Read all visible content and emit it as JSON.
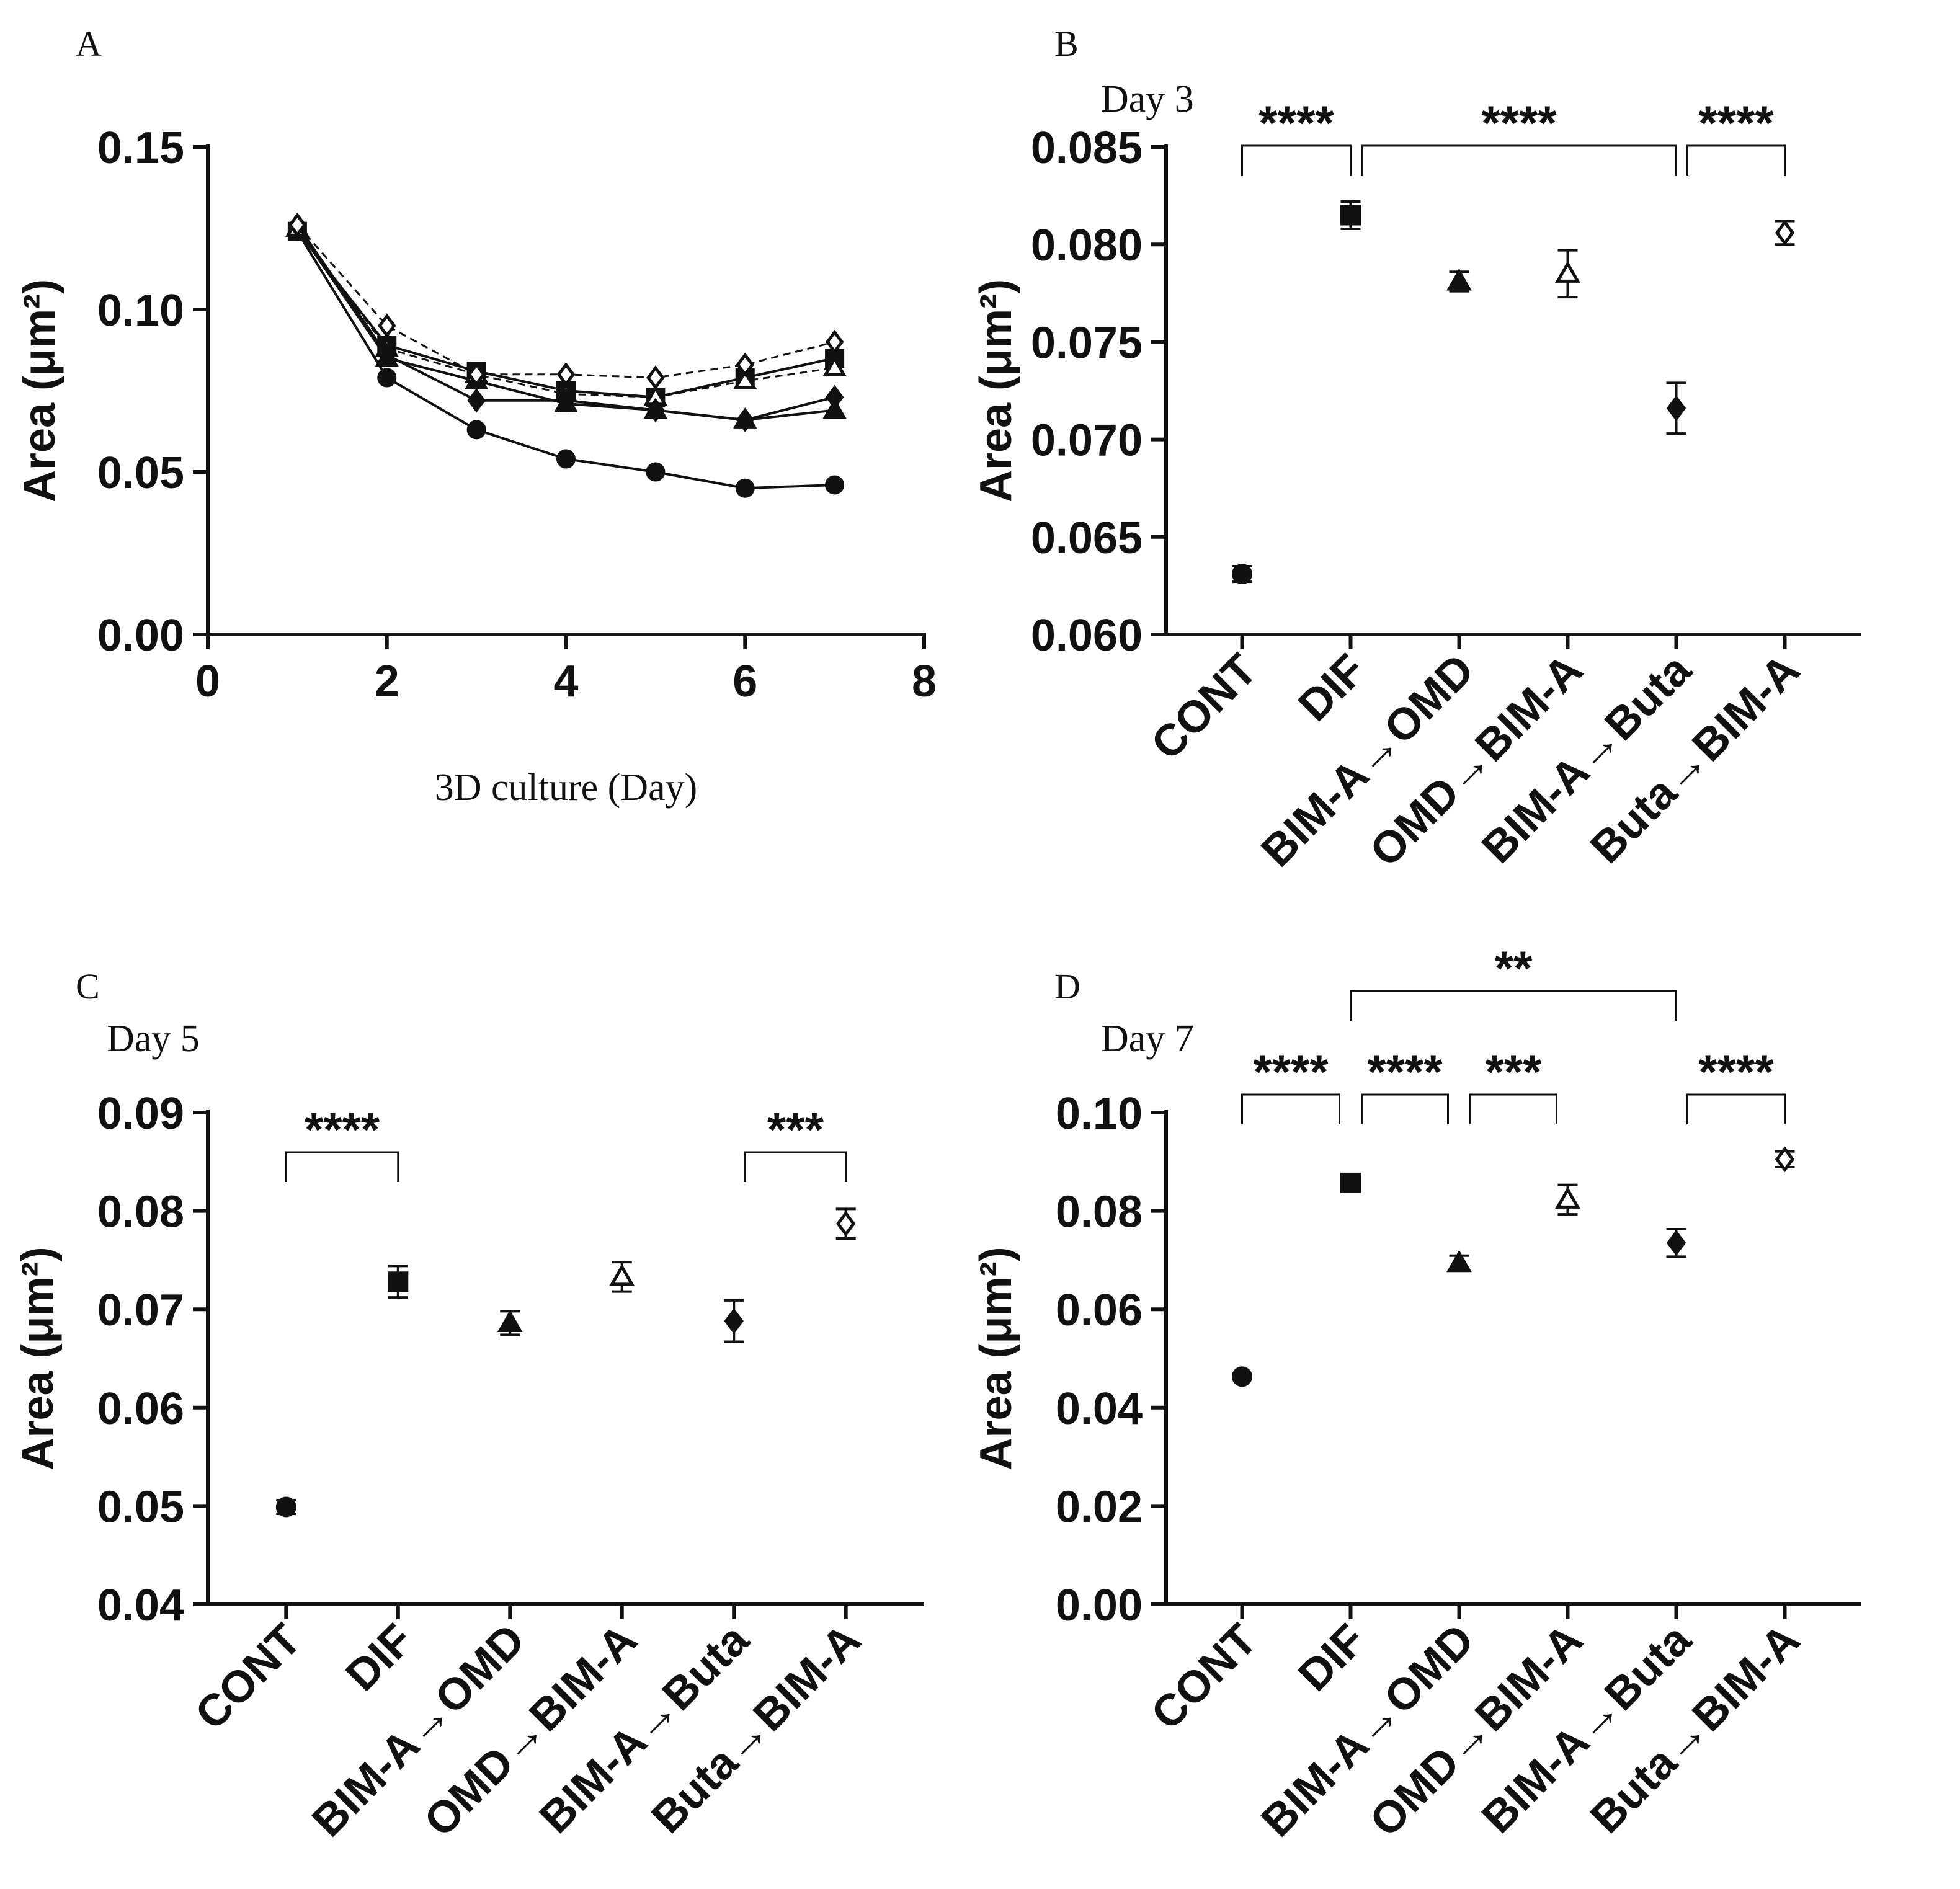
{
  "figure": {
    "panel_letters": [
      "A",
      "B",
      "C",
      "D"
    ],
    "groups": [
      "CONT",
      "DIF",
      "BIM-A→OMD",
      "OMD→BIM-A",
      "BIM-A→Buta",
      "Buta→BIM-A"
    ],
    "marker_styles": [
      "circle-filled",
      "square-filled",
      "triangle-filled",
      "triangle-open",
      "diamond-filled",
      "diamond-open"
    ],
    "colors": {
      "ink": "#111111",
      "background": "#ffffff"
    }
  },
  "chart_data": [
    {
      "panel": "A",
      "type": "line",
      "title": "",
      "xlabel": "3D culture (Day)",
      "ylabel": "Area (μm²)",
      "xlim": [
        0,
        8
      ],
      "ylim": [
        0,
        0.15
      ],
      "xticks": [
        "0",
        "2",
        "4",
        "6",
        "8"
      ],
      "yticks": [
        "0.00",
        "0.05",
        "0.10",
        "0.15"
      ],
      "x": [
        1,
        2,
        3,
        4,
        5,
        6,
        7
      ],
      "series": [
        {
          "name": "CONT",
          "marker": "circle-filled",
          "dashed": false,
          "values": [
            0.124,
            0.079,
            0.063,
            0.054,
            0.05,
            0.045,
            0.046
          ]
        },
        {
          "name": "DIF",
          "marker": "square-filled",
          "dashed": false,
          "values": [
            0.124,
            0.089,
            0.081,
            0.075,
            0.073,
            0.079,
            0.085
          ]
        },
        {
          "name": "BIM-A→OMD",
          "marker": "triangle-filled",
          "dashed": false,
          "values": [
            0.125,
            0.085,
            0.078,
            0.071,
            0.069,
            0.066,
            0.069
          ]
        },
        {
          "name": "OMD→BIM-A",
          "marker": "triangle-open",
          "dashed": true,
          "values": [
            0.125,
            0.088,
            0.08,
            0.074,
            0.073,
            0.078,
            0.082
          ]
        },
        {
          "name": "BIM-A→Buta",
          "marker": "diamond-filled",
          "dashed": false,
          "values": [
            0.126,
            0.086,
            0.072,
            0.072,
            0.069,
            0.066,
            0.073
          ]
        },
        {
          "name": "Buta→BIM-A",
          "marker": "diamond-open",
          "dashed": true,
          "values": [
            0.126,
            0.095,
            0.08,
            0.08,
            0.079,
            0.083,
            0.09
          ]
        }
      ]
    },
    {
      "panel": "B",
      "type": "scatter",
      "title": "Day 3",
      "xlabel": "",
      "ylabel": "Area (μm²)",
      "ylim": [
        0.06,
        0.085
      ],
      "yticks": [
        "0.060",
        "0.065",
        "0.070",
        "0.075",
        "0.080",
        "0.085"
      ],
      "categories": [
        "CONT",
        "DIF",
        "BIM-A→OMD",
        "OMD→BIM-A",
        "BIM-A→Buta",
        "Buta→BIM-A"
      ],
      "values": [
        0.0631,
        0.0815,
        0.0781,
        0.0785,
        0.0716,
        0.0806
      ],
      "errors": [
        0.0004,
        0.0007,
        0.0005,
        0.0012,
        0.0013,
        0.0006
      ],
      "significance": [
        {
          "from": 0,
          "to": 1,
          "level": 0,
          "label": "****"
        },
        {
          "from": 1,
          "to": 4,
          "level": 0,
          "label": "****"
        },
        {
          "from": 4,
          "to": 5,
          "level": 0,
          "label": "****"
        }
      ]
    },
    {
      "panel": "C",
      "type": "scatter",
      "title": "Day 5",
      "xlabel": "",
      "ylabel": "Area (μm²)",
      "ylim": [
        0.04,
        0.09
      ],
      "yticks": [
        "0.04",
        "0.05",
        "0.06",
        "0.07",
        "0.08",
        "0.09"
      ],
      "categories": [
        "CONT",
        "DIF",
        "BIM-A→OMD",
        "OMD→BIM-A",
        "BIM-A→Buta",
        "Buta→BIM-A"
      ],
      "values": [
        0.0499,
        0.0728,
        0.0686,
        0.0733,
        0.0688,
        0.0787
      ],
      "errors": [
        0.0007,
        0.0016,
        0.0012,
        0.0015,
        0.0021,
        0.0015
      ],
      "significance": [
        {
          "from": 0,
          "to": 1,
          "level": 0,
          "label": "****"
        },
        {
          "from": 4,
          "to": 5,
          "level": 0,
          "label": "***"
        }
      ]
    },
    {
      "panel": "D",
      "type": "scatter",
      "title": "Day 7",
      "xlabel": "",
      "ylabel": "Area (μm²)",
      "ylim": [
        0.0,
        0.1
      ],
      "yticks": [
        "0.00",
        "0.02",
        "0.04",
        "0.06",
        "0.08",
        "0.10"
      ],
      "categories": [
        "CONT",
        "DIF",
        "BIM-A→OMD",
        "OMD→BIM-A",
        "BIM-A→Buta",
        "Buta→BIM-A"
      ],
      "values": [
        0.0463,
        0.0857,
        0.0694,
        0.0823,
        0.0735,
        0.0905
      ],
      "errors": [
        0.0005,
        0.0008,
        0.0015,
        0.003,
        0.0028,
        0.0016
      ],
      "significance": [
        {
          "from": 0,
          "to": 1,
          "level": 0,
          "label": "****"
        },
        {
          "from": 1,
          "to": 2,
          "level": 0,
          "label": "****"
        },
        {
          "from": 2,
          "to": 3,
          "level": 0,
          "label": "***"
        },
        {
          "from": 4,
          "to": 5,
          "level": 0,
          "label": "****"
        },
        {
          "from": 1,
          "to": 4,
          "level": 1,
          "label": "**"
        }
      ]
    }
  ]
}
